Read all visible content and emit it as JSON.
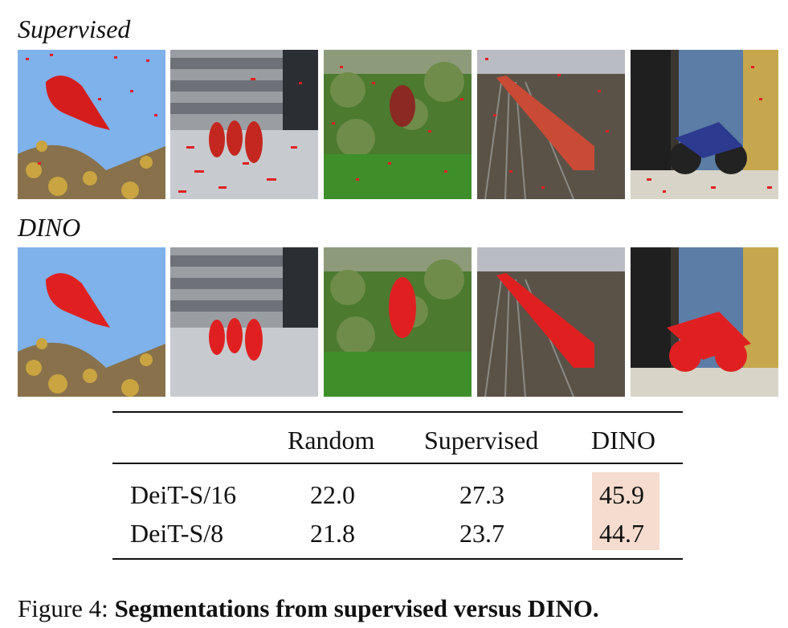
{
  "figure": {
    "row_labels": {
      "supervised": "Supervised",
      "dino": "DINO"
    },
    "images": [
      "bird",
      "ducks",
      "elephant",
      "train",
      "motorcycle"
    ],
    "highlight_color": "#f5dccf",
    "mask_color": "#e02020"
  },
  "table": {
    "headers": [
      "",
      "Random",
      "Supervised",
      "DINO"
    ],
    "rows": [
      {
        "model": "DeiT-S/16",
        "random": "22.0",
        "supervised": "27.3",
        "dino": "45.9"
      },
      {
        "model": "DeiT-S/8",
        "random": "21.8",
        "supervised": "23.7",
        "dino": "44.7"
      }
    ]
  },
  "caption": {
    "prefix": "Figure 4: ",
    "bold": "Segmentations from supervised versus DINO."
  }
}
